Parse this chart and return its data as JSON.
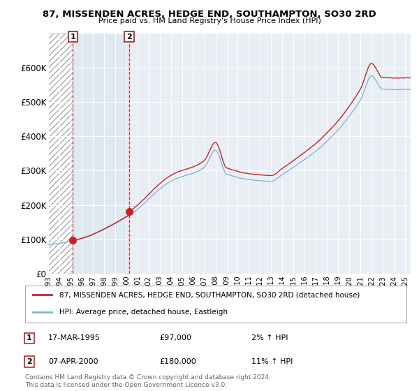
{
  "title": "87, MISSENDEN ACRES, HEDGE END, SOUTHAMPTON, SO30 2RD",
  "subtitle": "Price paid vs. HM Land Registry's House Price Index (HPI)",
  "legend_line1": "87, MISSENDEN ACRES, HEDGE END, SOUTHAMPTON, SO30 2RD (detached house)",
  "legend_line2": "HPI: Average price, detached house, Eastleigh",
  "transaction1_label": "1",
  "transaction1_date": "17-MAR-1995",
  "transaction1_price": "£97,000",
  "transaction1_hpi": "2% ↑ HPI",
  "transaction1_year": 1995.21,
  "transaction1_value": 97000,
  "transaction2_label": "2",
  "transaction2_date": "07-APR-2000",
  "transaction2_price": "£180,000",
  "transaction2_hpi": "11% ↑ HPI",
  "transaction2_year": 2000.27,
  "transaction2_value": 180000,
  "hpi_color": "#7ab3d4",
  "price_color": "#cc2222",
  "background_color": "#ffffff",
  "plot_bg_color": "#e8eef4",
  "grid_color": "#ffffff",
  "hatch_bg": "#ffffff",
  "shaded_bg": "#dce8f0",
  "ylim": [
    0,
    700000
  ],
  "yticks": [
    0,
    100000,
    200000,
    300000,
    400000,
    500000,
    600000
  ],
  "ytick_labels": [
    "£0",
    "£100K",
    "£200K",
    "£300K",
    "£400K",
    "£500K",
    "£600K"
  ],
  "xlim_start": 1993.0,
  "xlim_end": 2025.5,
  "footer": "Contains HM Land Registry data © Crown copyright and database right 2024.\nThis data is licensed under the Open Government Licence v3.0."
}
